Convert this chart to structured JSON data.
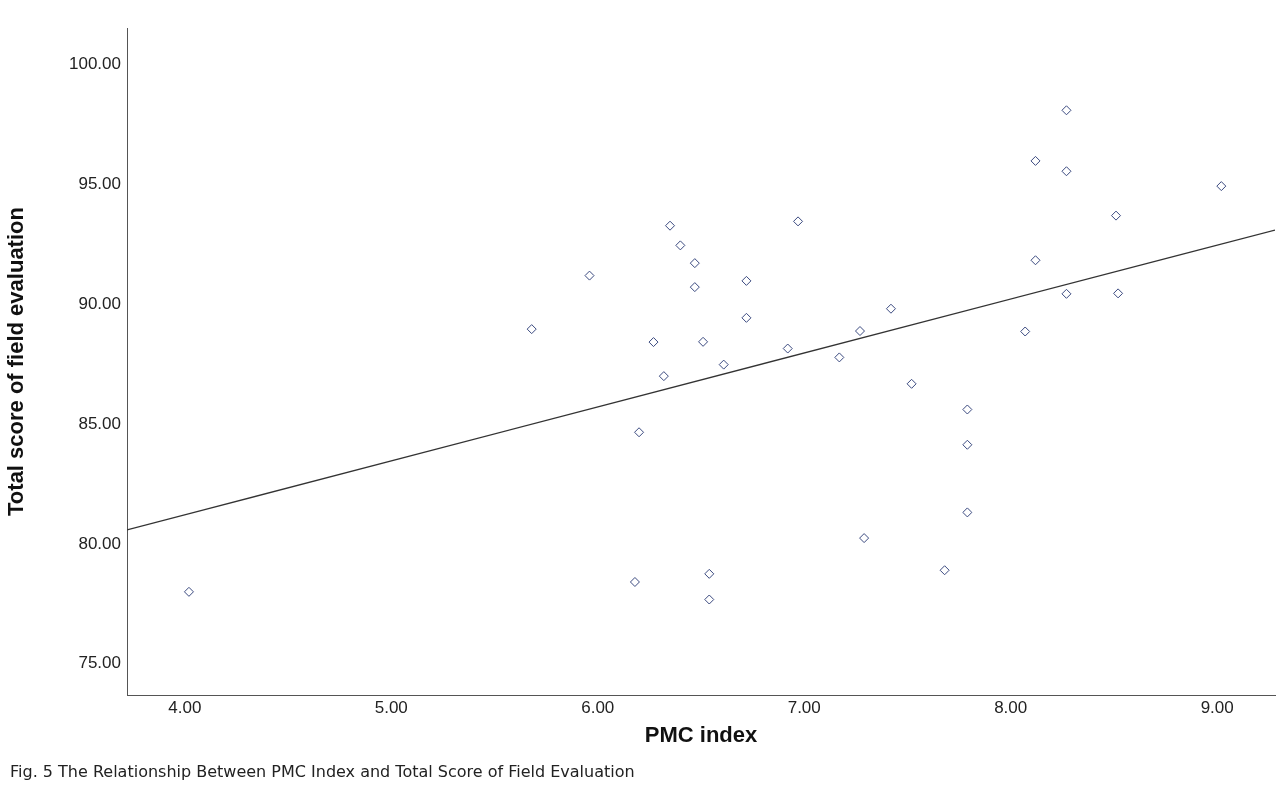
{
  "chart_data": {
    "type": "scatter",
    "xlabel": "PMC index",
    "ylabel": "Total score of field evaluation",
    "annotations": [
      "Fig. 5 The Relationship Between PMC Index and Total Score of Field Evaluation"
    ],
    "xlim": [
      3.72,
      9.28
    ],
    "ylim": [
      73.7,
      101.5
    ],
    "xticks": [
      {
        "value": 4,
        "label": "4.00"
      },
      {
        "value": 5,
        "label": "5.00"
      },
      {
        "value": 6,
        "label": "6.00"
      },
      {
        "value": 7,
        "label": "7.00"
      },
      {
        "value": 8,
        "label": "8.00"
      },
      {
        "value": 9,
        "label": "9.00"
      }
    ],
    "yticks": [
      {
        "value": 75,
        "label": "75.00"
      },
      {
        "value": 80,
        "label": "80.00"
      },
      {
        "value": 85,
        "label": "85.00"
      },
      {
        "value": 90,
        "label": "90.00"
      },
      {
        "value": 95,
        "label": "95.00"
      },
      {
        "value": 100,
        "label": "100.00"
      }
    ],
    "grid": false,
    "legend": false,
    "marker": "diamond",
    "series": [
      {
        "type": "scatter",
        "color": "#3b4a80",
        "x": [
          4.02,
          6.35,
          6.97,
          6.4,
          6.47,
          5.96,
          6.72,
          6.47,
          7.42,
          6.72,
          5.68,
          6.27,
          6.51,
          7.27,
          6.92,
          7.17,
          6.61,
          6.32,
          6.2,
          7.29,
          6.54,
          6.18,
          6.54,
          8.27,
          8.12,
          8.27,
          9.02,
          8.51,
          8.12,
          8.27,
          8.52,
          8.07,
          7.52,
          7.79,
          7.79,
          7.79,
          7.68
        ],
        "values": [
          78.0,
          93.26,
          93.44,
          92.44,
          91.7,
          91.18,
          90.96,
          90.7,
          89.8,
          89.42,
          88.95,
          88.41,
          88.42,
          88.87,
          88.14,
          87.77,
          87.47,
          86.99,
          84.65,
          80.24,
          78.75,
          78.41,
          77.68,
          98.07,
          95.96,
          95.53,
          94.91,
          93.68,
          91.82,
          90.42,
          90.44,
          88.85,
          86.67,
          85.6,
          84.13,
          81.31,
          78.9
        ]
      },
      {
        "type": "line",
        "color": "#333333",
        "x": [
          3.72,
          9.28
        ],
        "values": [
          80.58,
          93.08
        ],
        "marker": "none"
      }
    ]
  }
}
